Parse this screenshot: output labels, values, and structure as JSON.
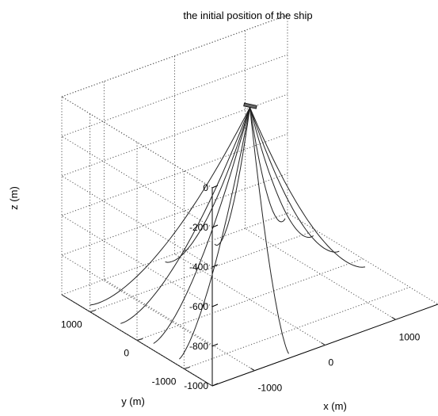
{
  "chart_data": {
    "type": "line3d",
    "title": "the initial position of the ship",
    "xlabel": "x (m)",
    "ylabel": "y (m)",
    "zlabel": "z (m)",
    "xticks": [
      -1000,
      0,
      1000
    ],
    "yticks": [
      -1000,
      0,
      1000
    ],
    "zticks": [
      0,
      -200,
      -400,
      -600,
      -800,
      -1000
    ],
    "xlim": [
      -1600,
      1600
    ],
    "ylim": [
      -1600,
      1600
    ],
    "zlim": [
      -1000,
      0
    ],
    "grid": true,
    "apex": {
      "x": 0,
      "y": 0,
      "z": -30
    },
    "lines": [
      {
        "name": "",
        "end": [
          -1500,
          1150,
          -1000
        ]
      },
      {
        "name": "",
        "end": [
          -1500,
          500,
          -1000
        ]
      },
      {
        "name": "",
        "end": [
          -1500,
          -200,
          -1000
        ]
      },
      {
        "name": "",
        "end": [
          -1500,
          -750,
          -1000
        ]
      },
      {
        "name": "",
        "end": [
          -450,
          -1500,
          -1000
        ]
      },
      {
        "name": "",
        "end": [
          -200,
          1500,
          -1000
        ]
      },
      {
        "name": "",
        "end": [
          500,
          1500,
          -1000
        ]
      },
      {
        "name": "",
        "end": [
          1500,
          1500,
          -1000
        ]
      },
      {
        "name": "",
        "end": [
          1500,
          900,
          -1000
        ]
      },
      {
        "name": "",
        "end": [
          1500,
          350,
          -1000
        ]
      },
      {
        "name": "",
        "end": [
          1500,
          -200,
          -1000
        ]
      }
    ]
  }
}
